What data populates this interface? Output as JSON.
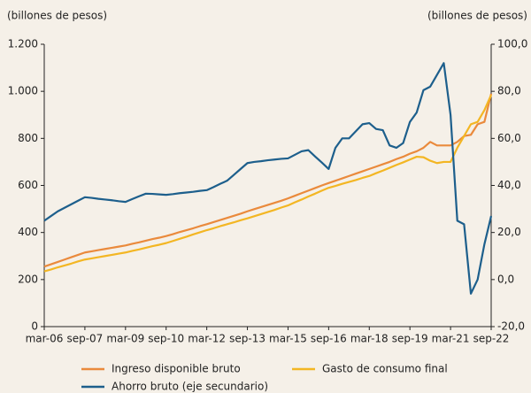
{
  "chart_data": {
    "type": "line",
    "y_label": "(billones de pesos)",
    "y2_label": "(billones de pesos)",
    "categories": [
      "mar-06",
      null,
      null,
      null,
      null,
      null,
      "sep-07",
      null,
      null,
      null,
      null,
      null,
      "mar-09",
      null,
      null,
      null,
      null,
      null,
      "sep-10",
      null,
      null,
      null,
      null,
      null,
      "mar-12",
      null,
      null,
      null,
      null,
      null,
      "sep-13",
      null,
      null,
      null,
      null,
      null,
      "mar-15",
      null,
      null,
      null,
      null,
      null,
      "sep-16",
      null,
      null,
      null,
      null,
      null,
      "mar-18",
      null,
      null,
      null,
      null,
      null,
      "sep-19",
      null,
      null,
      null,
      null,
      null,
      "mar-21",
      null,
      null,
      null,
      null,
      null,
      "sep-22"
    ],
    "ylim": [
      0,
      1200
    ],
    "yticks": [
      0,
      200,
      400,
      600,
      800,
      {
        "value": 1000,
        "label": "1.000"
      },
      {
        "value": 1200,
        "label": "1.200"
      }
    ],
    "y2lim": [
      -20,
      100
    ],
    "y2ticks": [
      {
        "value": -20,
        "label": "-20,0"
      },
      {
        "value": 0,
        "label": "0,0"
      },
      {
        "value": 20,
        "label": "20,0"
      },
      {
        "value": 40,
        "label": "40,0"
      },
      {
        "value": 60,
        "label": "60,0"
      },
      {
        "value": 80,
        "label": "80,0"
      },
      {
        "value": 100,
        "label": "100,0"
      }
    ],
    "series": [
      {
        "name": "Ingreso disponible bruto",
        "color": "#ea8a3c",
        "values": [
          255,
          265,
          275,
          285,
          295,
          305,
          315,
          320,
          325,
          330,
          335,
          340,
          345,
          352,
          358,
          365,
          372,
          378,
          385,
          393,
          402,
          410,
          418,
          427,
          435,
          444,
          453,
          462,
          471,
          480,
          490,
          499,
          508,
          517,
          526,
          535,
          545,
          556,
          567,
          578,
          589,
          600,
          610,
          620,
          630,
          640,
          650,
          660,
          670,
          680,
          690,
          700,
          712,
          722,
          735,
          745,
          760,
          785,
          770,
          770,
          770,
          785,
          810,
          815,
          860,
          870,
          990
        ]
      },
      {
        "name": "Gasto de consumo final",
        "color": "#f3b623",
        "values": [
          235,
          243,
          252,
          260,
          268,
          277,
          285,
          290,
          295,
          300,
          305,
          310,
          315,
          322,
          328,
          335,
          342,
          348,
          355,
          364,
          373,
          382,
          392,
          401,
          410,
          418,
          427,
          435,
          443,
          452,
          460,
          469,
          478,
          487,
          496,
          506,
          515,
          528,
          540,
          553,
          565,
          578,
          590,
          598,
          607,
          615,
          623,
          632,
          640,
          652,
          663,
          675,
          687,
          698,
          710,
          722,
          720,
          705,
          695,
          700,
          700,
          760,
          810,
          860,
          870,
          920,
          985
        ]
      },
      {
        "name": "Ahorro bruto (eje secundario)",
        "color": "#1d5f8c",
        "axis": "y2",
        "values": [
          25,
          27,
          29,
          30.5,
          32,
          33.5,
          35,
          34.7,
          34.3,
          34,
          33.7,
          33.3,
          33,
          34.2,
          35.4,
          36.5,
          36.4,
          36.2,
          36,
          36.3,
          36.7,
          37,
          37.3,
          37.7,
          38,
          39.3,
          40.7,
          42,
          44.5,
          47,
          49.5,
          50,
          50.3,
          50.7,
          51,
          51.3,
          51.5,
          53,
          54.5,
          55,
          52.3,
          49.7,
          47,
          56,
          60,
          60,
          63,
          66,
          66.5,
          64,
          63.5,
          57,
          56,
          58,
          67,
          71,
          80.5,
          82,
          87,
          92,
          70,
          25,
          23.5,
          -6,
          0,
          15,
          27
        ]
      }
    ]
  }
}
